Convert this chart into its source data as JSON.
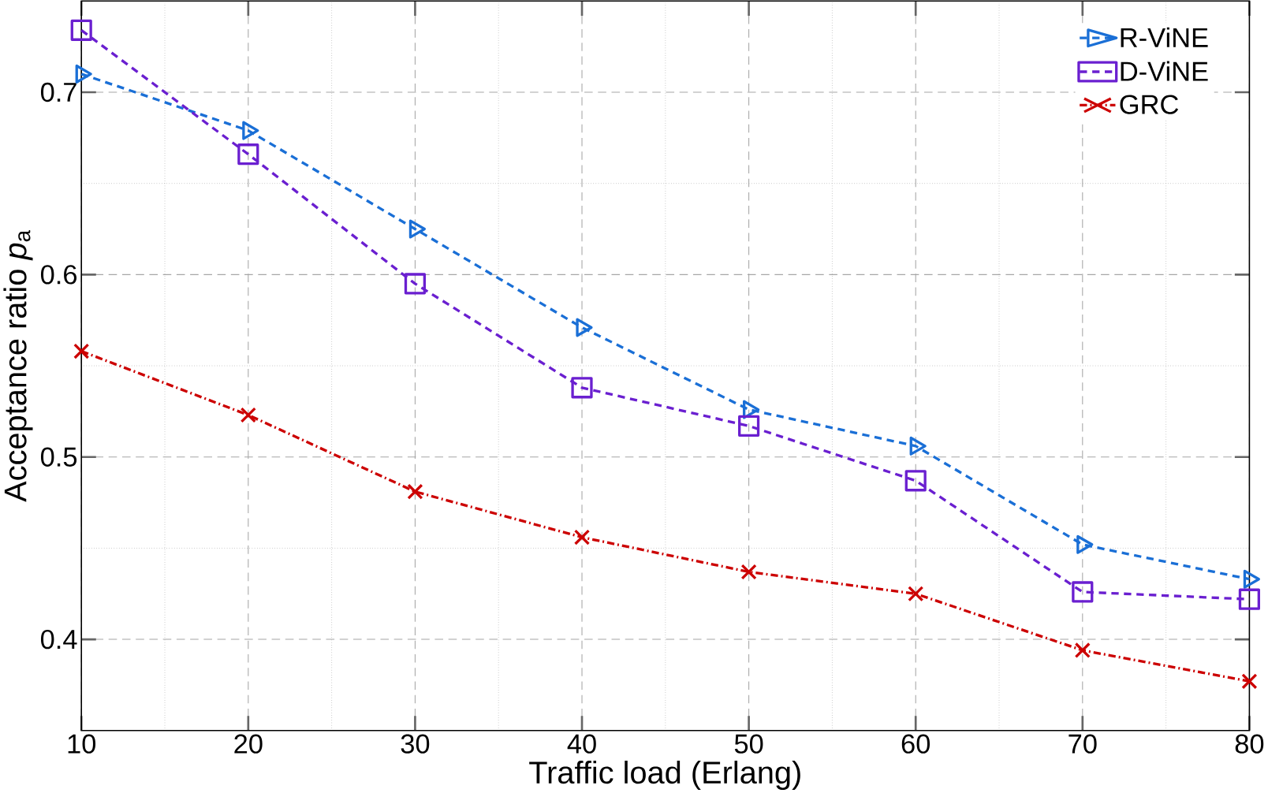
{
  "chart_data": {
    "type": "line",
    "xlabel": "Traffic load (Erlang)",
    "ylabel": "Acceptance ratio *p*$_{a}$",
    "x": [
      10,
      20,
      30,
      40,
      50,
      60,
      70,
      80
    ],
    "series": [
      {
        "name": "R-ViNE",
        "color": "#1a6fd6",
        "marker": "triangle",
        "line_style": "dashed",
        "values": [
          0.71,
          0.679,
          0.625,
          0.571,
          0.526,
          0.506,
          0.452,
          0.433
        ]
      },
      {
        "name": "D-ViNE",
        "color": "#6a1fd0",
        "marker": "square",
        "line_style": "dashed",
        "values": [
          0.734,
          0.666,
          0.595,
          0.538,
          0.517,
          0.487,
          0.426,
          0.422
        ]
      },
      {
        "name": "GRC",
        "color": "#cc0000",
        "marker": "cross",
        "line_style": "dashdot",
        "values": [
          0.558,
          0.523,
          0.481,
          0.456,
          0.437,
          0.425,
          0.394,
          0.377
        ]
      }
    ],
    "xlim": [
      10,
      80
    ],
    "ylim": [
      0.35,
      0.75
    ],
    "xticks": [
      10,
      20,
      30,
      40,
      50,
      60,
      70,
      80
    ],
    "yticks": [
      0.4,
      0.5,
      0.6,
      0.7
    ],
    "grid": true,
    "legend": "top right"
  }
}
